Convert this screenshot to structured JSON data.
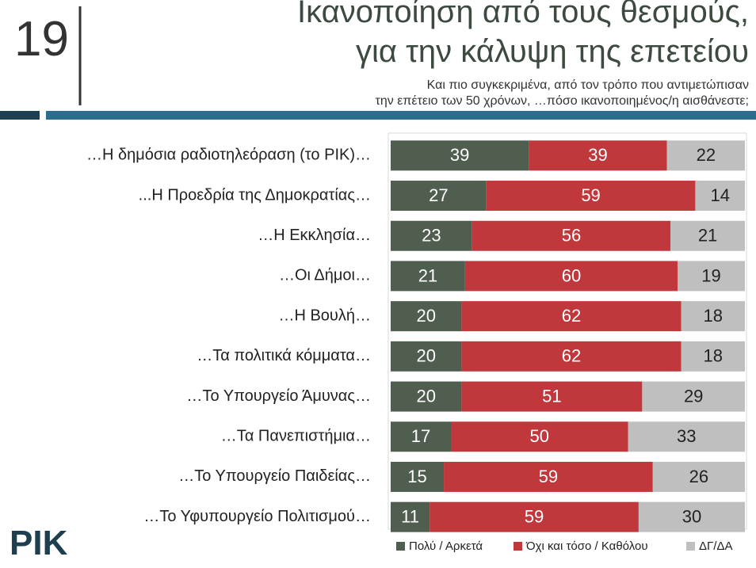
{
  "page_number": "19",
  "logo": "PIK",
  "chart_data": {
    "type": "bar",
    "orientation": "horizontal",
    "stacked": true,
    "title_lines": [
      "Ικανοποίηση από τους θεσμούς,",
      "για την κάλυψη της επετείου"
    ],
    "subtitle_lines": [
      "Και πιο συγκεκριμένα, από τον τρόπο που αντιμετώπισαν",
      "την επέτειο των 50 χρόνων, …πόσο ικανοποιημένος/η αισθάνεστε;"
    ],
    "categories": [
      "…Η δημόσια ραδιοτηλεόραση (το ΡΙΚ)…",
      "...Η Προεδρία της Δημοκρατίας…",
      "…Η Εκκλησία…",
      "…Οι Δήμοι…",
      "…Η Βουλή…",
      "…Τα πολιτικά κόμματα…",
      "…Το Υπουργείο Άμυνας…",
      "…Τα Πανεπιστήμια…",
      "…Το Υπουργείο Παιδείας…",
      "…Το Υφυπουργείο Πολιτισμού…"
    ],
    "series": [
      {
        "name": "Πολύ / Αρκετά",
        "color": "#505e50",
        "label_color": "#ffffff",
        "values": [
          39,
          27,
          23,
          21,
          20,
          20,
          20,
          17,
          15,
          11
        ]
      },
      {
        "name": "Όχι και τόσο / Καθόλου",
        "color": "#c0383b",
        "label_color": "#ffffff",
        "values": [
          39,
          59,
          56,
          60,
          62,
          62,
          51,
          50,
          59,
          59
        ]
      },
      {
        "name": "ΔΓ/ΔΑ",
        "color": "#bfbfbf",
        "label_color": "#222222",
        "values": [
          22,
          14,
          21,
          19,
          18,
          18,
          29,
          33,
          26,
          30
        ]
      }
    ],
    "xlim": [
      0,
      100
    ],
    "legend": "bottom"
  }
}
